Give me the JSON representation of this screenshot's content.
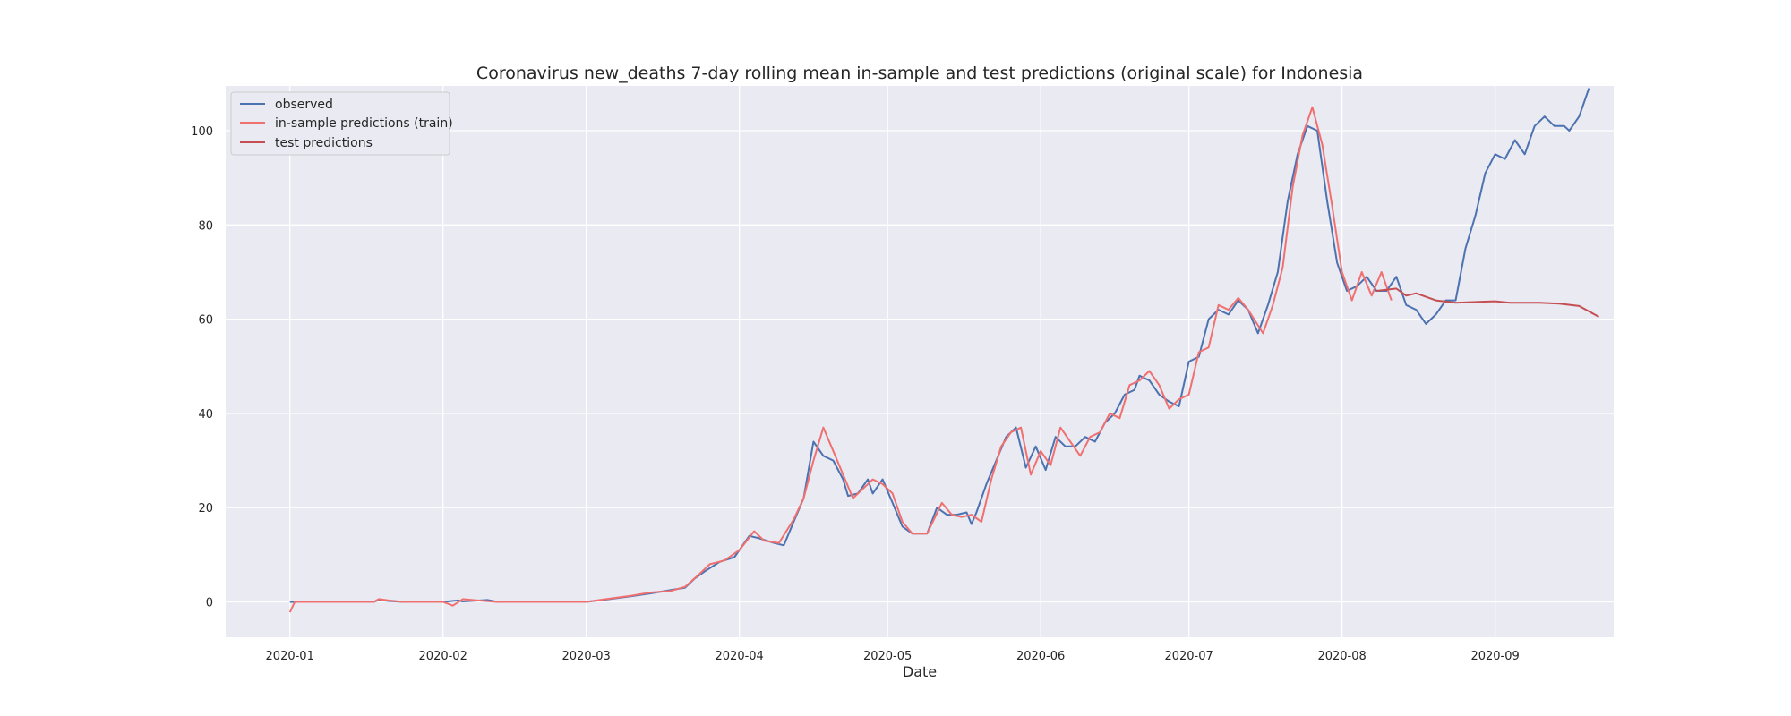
{
  "chart_data": {
    "type": "line",
    "title": "Coronavirus new_deaths 7-day rolling mean in-sample and test predictions (original scale) for Indonesia",
    "xlabel": "Date",
    "ylabel": "",
    "xlim": [
      "2019-12-19",
      "2020-09-25"
    ],
    "ylim": [
      -7.5,
      109.5
    ],
    "x_ticks": [
      "2020-01",
      "2020-02",
      "2020-03",
      "2020-04",
      "2020-05",
      "2020-06",
      "2020-07",
      "2020-08",
      "2020-09"
    ],
    "y_ticks": [
      0,
      20,
      40,
      60,
      80,
      100
    ],
    "grid": true,
    "legend_position": "top-left",
    "colors": {
      "background": "#eaeaf2",
      "grid": "#ffffff",
      "observed": "#4c72b0",
      "train": "#f07070",
      "test": "#c44e52"
    },
    "series": [
      {
        "name": "observed",
        "color": "#4c72b0",
        "points": [
          [
            "2020-01-01",
            0
          ],
          [
            "2020-01-18",
            0
          ],
          [
            "2020-01-19",
            0.4
          ],
          [
            "2020-01-21",
            0.2
          ],
          [
            "2020-01-24",
            0
          ],
          [
            "2020-02-01",
            0
          ],
          [
            "2020-02-04",
            0.3
          ],
          [
            "2020-02-05",
            0.1
          ],
          [
            "2020-02-10",
            0.4
          ],
          [
            "2020-02-12",
            0
          ],
          [
            "2020-03-01",
            0
          ],
          [
            "2020-03-05",
            0.5
          ],
          [
            "2020-03-10",
            1.2
          ],
          [
            "2020-03-14",
            1.8
          ],
          [
            "2020-03-18",
            2.5
          ],
          [
            "2020-03-21",
            3.0
          ],
          [
            "2020-03-23",
            5.0
          ],
          [
            "2020-03-25",
            6.5
          ],
          [
            "2020-03-28",
            8.5
          ],
          [
            "2020-03-31",
            9.5
          ],
          [
            "2020-04-03",
            14
          ],
          [
            "2020-04-05",
            13.5
          ],
          [
            "2020-04-08",
            12.5
          ],
          [
            "2020-04-10",
            12
          ],
          [
            "2020-04-12",
            17
          ],
          [
            "2020-04-14",
            22
          ],
          [
            "2020-04-16",
            34
          ],
          [
            "2020-04-18",
            31
          ],
          [
            "2020-04-20",
            30
          ],
          [
            "2020-04-22",
            26
          ],
          [
            "2020-04-23",
            22.5
          ],
          [
            "2020-04-25",
            23
          ],
          [
            "2020-04-27",
            26
          ],
          [
            "2020-04-28",
            23
          ],
          [
            "2020-04-30",
            26
          ],
          [
            "2020-05-02",
            21
          ],
          [
            "2020-05-04",
            16
          ],
          [
            "2020-05-06",
            14.5
          ],
          [
            "2020-05-09",
            14.5
          ],
          [
            "2020-05-11",
            20
          ],
          [
            "2020-05-13",
            18.5
          ],
          [
            "2020-05-15",
            18.5
          ],
          [
            "2020-05-17",
            19
          ],
          [
            "2020-05-18",
            16.5
          ],
          [
            "2020-05-19",
            19
          ],
          [
            "2020-05-21",
            25
          ],
          [
            "2020-05-23",
            30
          ],
          [
            "2020-05-25",
            35
          ],
          [
            "2020-05-27",
            37
          ],
          [
            "2020-05-29",
            28.5
          ],
          [
            "2020-05-31",
            33
          ],
          [
            "2020-06-02",
            28
          ],
          [
            "2020-06-04",
            35
          ],
          [
            "2020-06-06",
            33
          ],
          [
            "2020-06-08",
            33
          ],
          [
            "2020-06-10",
            35
          ],
          [
            "2020-06-12",
            34
          ],
          [
            "2020-06-14",
            38
          ],
          [
            "2020-06-16",
            40
          ],
          [
            "2020-06-18",
            44
          ],
          [
            "2020-06-20",
            45
          ],
          [
            "2020-06-21",
            48
          ],
          [
            "2020-06-23",
            47
          ],
          [
            "2020-06-25",
            44
          ],
          [
            "2020-06-27",
            42.5
          ],
          [
            "2020-06-29",
            41.5
          ],
          [
            "2020-07-01",
            51
          ],
          [
            "2020-07-03",
            52
          ],
          [
            "2020-07-05",
            60
          ],
          [
            "2020-07-07",
            62
          ],
          [
            "2020-07-09",
            61
          ],
          [
            "2020-07-11",
            64
          ],
          [
            "2020-07-13",
            62
          ],
          [
            "2020-07-15",
            57
          ],
          [
            "2020-07-17",
            63
          ],
          [
            "2020-07-19",
            70
          ],
          [
            "2020-07-21",
            85
          ],
          [
            "2020-07-23",
            95
          ],
          [
            "2020-07-25",
            101
          ],
          [
            "2020-07-27",
            100
          ],
          [
            "2020-07-29",
            85
          ],
          [
            "2020-07-31",
            72
          ],
          [
            "2020-08-02",
            66
          ],
          [
            "2020-08-04",
            67
          ],
          [
            "2020-08-06",
            69
          ],
          [
            "2020-08-08",
            66
          ],
          [
            "2020-08-10",
            66
          ],
          [
            "2020-08-12",
            69
          ],
          [
            "2020-08-14",
            63
          ],
          [
            "2020-08-16",
            62
          ],
          [
            "2020-08-18",
            59
          ],
          [
            "2020-08-20",
            61
          ],
          [
            "2020-08-22",
            64
          ],
          [
            "2020-08-24",
            64
          ],
          [
            "2020-08-26",
            75
          ],
          [
            "2020-08-28",
            82
          ],
          [
            "2020-08-30",
            91
          ],
          [
            "2020-09-01",
            95
          ],
          [
            "2020-09-03",
            94
          ],
          [
            "2020-09-05",
            98
          ],
          [
            "2020-09-07",
            95
          ],
          [
            "2020-09-09",
            101
          ],
          [
            "2020-09-11",
            103
          ],
          [
            "2020-09-13",
            101
          ],
          [
            "2020-09-15",
            101
          ],
          [
            "2020-09-16",
            100
          ],
          [
            "2020-09-18",
            103
          ],
          [
            "2020-09-20",
            109
          ]
        ]
      },
      {
        "name": "in-sample predictions (train)",
        "color": "#f07070",
        "points": [
          [
            "2020-01-01",
            -2.2
          ],
          [
            "2020-01-02",
            0
          ],
          [
            "2020-01-18",
            0
          ],
          [
            "2020-01-19",
            0.6
          ],
          [
            "2020-01-21",
            0.3
          ],
          [
            "2020-01-24",
            0
          ],
          [
            "2020-02-01",
            0
          ],
          [
            "2020-02-03",
            -0.8
          ],
          [
            "2020-02-05",
            0.6
          ],
          [
            "2020-02-08",
            0.3
          ],
          [
            "2020-02-12",
            0
          ],
          [
            "2020-03-01",
            0
          ],
          [
            "2020-03-05",
            0.6
          ],
          [
            "2020-03-10",
            1.3
          ],
          [
            "2020-03-14",
            2.0
          ],
          [
            "2020-03-18",
            2.3
          ],
          [
            "2020-03-21",
            3.2
          ],
          [
            "2020-03-24",
            6.0
          ],
          [
            "2020-03-26",
            8.0
          ],
          [
            "2020-03-29",
            8.8
          ],
          [
            "2020-04-01",
            11
          ],
          [
            "2020-04-04",
            15
          ],
          [
            "2020-04-06",
            13
          ],
          [
            "2020-04-09",
            12.5
          ],
          [
            "2020-04-12",
            17.5
          ],
          [
            "2020-04-14",
            22
          ],
          [
            "2020-04-16",
            30
          ],
          [
            "2020-04-18",
            37
          ],
          [
            "2020-04-20",
            32
          ],
          [
            "2020-04-22",
            27
          ],
          [
            "2020-04-24",
            22
          ],
          [
            "2020-04-26",
            24
          ],
          [
            "2020-04-28",
            26
          ],
          [
            "2020-04-30",
            25
          ],
          [
            "2020-05-02",
            23
          ],
          [
            "2020-05-04",
            17
          ],
          [
            "2020-05-06",
            14.5
          ],
          [
            "2020-05-09",
            14.5
          ],
          [
            "2020-05-12",
            21
          ],
          [
            "2020-05-14",
            18.5
          ],
          [
            "2020-05-16",
            18
          ],
          [
            "2020-05-18",
            18.5
          ],
          [
            "2020-05-20",
            17
          ],
          [
            "2020-05-22",
            26
          ],
          [
            "2020-05-24",
            33
          ],
          [
            "2020-05-26",
            36
          ],
          [
            "2020-05-28",
            37
          ],
          [
            "2020-05-30",
            27
          ],
          [
            "2020-06-01",
            32
          ],
          [
            "2020-06-03",
            29
          ],
          [
            "2020-06-05",
            37
          ],
          [
            "2020-06-07",
            34
          ],
          [
            "2020-06-09",
            31
          ],
          [
            "2020-06-11",
            35
          ],
          [
            "2020-06-13",
            36
          ],
          [
            "2020-06-15",
            40
          ],
          [
            "2020-06-17",
            39
          ],
          [
            "2020-06-19",
            46
          ],
          [
            "2020-06-21",
            47
          ],
          [
            "2020-06-23",
            49
          ],
          [
            "2020-06-25",
            46
          ],
          [
            "2020-06-27",
            41
          ],
          [
            "2020-06-29",
            43
          ],
          [
            "2020-07-01",
            44
          ],
          [
            "2020-07-03",
            53
          ],
          [
            "2020-07-05",
            54
          ],
          [
            "2020-07-07",
            63
          ],
          [
            "2020-07-09",
            62
          ],
          [
            "2020-07-11",
            64.5
          ],
          [
            "2020-07-13",
            62
          ],
          [
            "2020-07-16",
            57
          ],
          [
            "2020-07-18",
            63
          ],
          [
            "2020-07-20",
            71
          ],
          [
            "2020-07-22",
            88
          ],
          [
            "2020-07-24",
            99
          ],
          [
            "2020-07-26",
            105
          ],
          [
            "2020-07-28",
            97
          ],
          [
            "2020-07-30",
            84
          ],
          [
            "2020-08-01",
            70
          ],
          [
            "2020-08-03",
            64
          ],
          [
            "2020-08-05",
            70
          ],
          [
            "2020-08-07",
            65
          ],
          [
            "2020-08-09",
            70
          ],
          [
            "2020-08-11",
            64
          ]
        ]
      },
      {
        "name": "test predictions",
        "color": "#c44e52",
        "points": [
          [
            "2020-08-08",
            66
          ],
          [
            "2020-08-12",
            66.5
          ],
          [
            "2020-08-14",
            65
          ],
          [
            "2020-08-16",
            65.5
          ],
          [
            "2020-08-20",
            64
          ],
          [
            "2020-08-24",
            63.5
          ],
          [
            "2020-09-01",
            63.8
          ],
          [
            "2020-09-04",
            63.5
          ],
          [
            "2020-09-10",
            63.5
          ],
          [
            "2020-09-14",
            63.3
          ],
          [
            "2020-09-18",
            62.8
          ],
          [
            "2020-09-22",
            60.5
          ]
        ]
      }
    ]
  }
}
